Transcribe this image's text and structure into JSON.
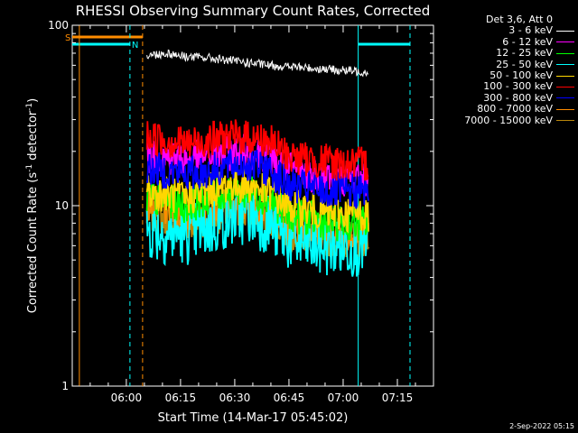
{
  "chart_data": {
    "type": "line",
    "title": "RHESSI Observing Summary Count Rates, Corrected",
    "xlabel": "Start Time (14-Mar-17 05:45:02)",
    "ylabel": "Corrected Count Rate (s",
    "ylabel_unit": "-1",
    "ylabel_unit2": " detector",
    "ylabel_unit3": "-1",
    "ylabel_end": ")",
    "yscale": "log",
    "ylim": [
      1,
      100
    ],
    "yticks": [
      {
        "value": 1,
        "label": "1"
      },
      {
        "value": 10,
        "label": "10"
      },
      {
        "value": 100,
        "label": "100"
      }
    ],
    "xlim": [
      "05:45:02",
      "07:25:00"
    ],
    "xticks": [
      {
        "value": "06:00",
        "label": "06:00"
      },
      {
        "value": "06:15",
        "label": "06:15"
      },
      {
        "value": "06:30",
        "label": "06:30"
      },
      {
        "value": "06:45",
        "label": "06:45"
      },
      {
        "value": "07:00",
        "label": "07:00"
      },
      {
        "value": "07:15",
        "label": "07:15"
      }
    ],
    "data_interval": [
      "06:05:40",
      "07:07:00"
    ],
    "legend_header": "Det 3,6, Att 0",
    "legend_position": "right",
    "series": [
      {
        "name": "3 - 6 keV",
        "color": "#ffffff",
        "values": [
          68,
          70,
          67,
          66,
          64,
          62,
          60,
          59,
          58,
          57,
          56,
          55
        ]
      },
      {
        "name": "6 - 12 keV",
        "color": "#ff00ff",
        "values": [
          19,
          18.5,
          18,
          19,
          19.5,
          20,
          19,
          16,
          15,
          14.5,
          14,
          14
        ]
      },
      {
        "name": "12 - 25 keV",
        "color": "#00ff00",
        "values": [
          11,
          10.5,
          10,
          11,
          12,
          12,
          11,
          9,
          8.5,
          8,
          8,
          8
        ]
      },
      {
        "name": "25 - 50 keV",
        "color": "#00ffff",
        "values": [
          7.5,
          7,
          7,
          7.5,
          8.5,
          9,
          8,
          6.5,
          6,
          6,
          6,
          6
        ]
      },
      {
        "name": "50 - 100 keV",
        "color": "#ffd700",
        "values": [
          12,
          11.5,
          11,
          12,
          13,
          13,
          12,
          10,
          9.5,
          9,
          9,
          9
        ]
      },
      {
        "name": "100 - 300 keV",
        "color": "#ff0000",
        "values": [
          24,
          23,
          22,
          23,
          24,
          24,
          23,
          19,
          18,
          17.5,
          17,
          17
        ]
      },
      {
        "name": "300 - 800 keV",
        "color": "#0000ff",
        "values": [
          16,
          15.5,
          15,
          15.5,
          16.5,
          17,
          16,
          13,
          12.5,
          12,
          12,
          12
        ]
      },
      {
        "name": "800 - 7000 keV",
        "color": "#ff8c00",
        "values": [
          10,
          9.5,
          9,
          9.5,
          10,
          10,
          9.5,
          8,
          7.5,
          7,
          7,
          7
        ]
      },
      {
        "name": "7000 - 15000 keV",
        "color": "#b8860b",
        "values": [
          9,
          8.5,
          8,
          8.5,
          9,
          9,
          8.5,
          7,
          6.8,
          6.5,
          6.5,
          6.5
        ]
      }
    ],
    "flags": [
      {
        "label": "S",
        "color": "#ff8c00",
        "from": "05:45:02",
        "to": "06:04:30"
      },
      {
        "label": "N",
        "color": "#00ffff",
        "from": "05:45:02",
        "to": "06:01:00"
      }
    ],
    "markers": [
      {
        "time": "05:47:00",
        "color": "#ff8c00",
        "style": "solid"
      },
      {
        "time": "06:01:00",
        "color": "#00ffff",
        "style": "dashed"
      },
      {
        "time": "06:04:30",
        "color": "#ff8c00",
        "style": "dashed"
      },
      {
        "time": "07:04:10",
        "color": "#00ffff",
        "style": "solid"
      },
      {
        "time": "07:18:30",
        "color": "#00ffff",
        "style": "dashed"
      }
    ],
    "grid": false
  },
  "footer": "2-Sep-2022 05:15"
}
